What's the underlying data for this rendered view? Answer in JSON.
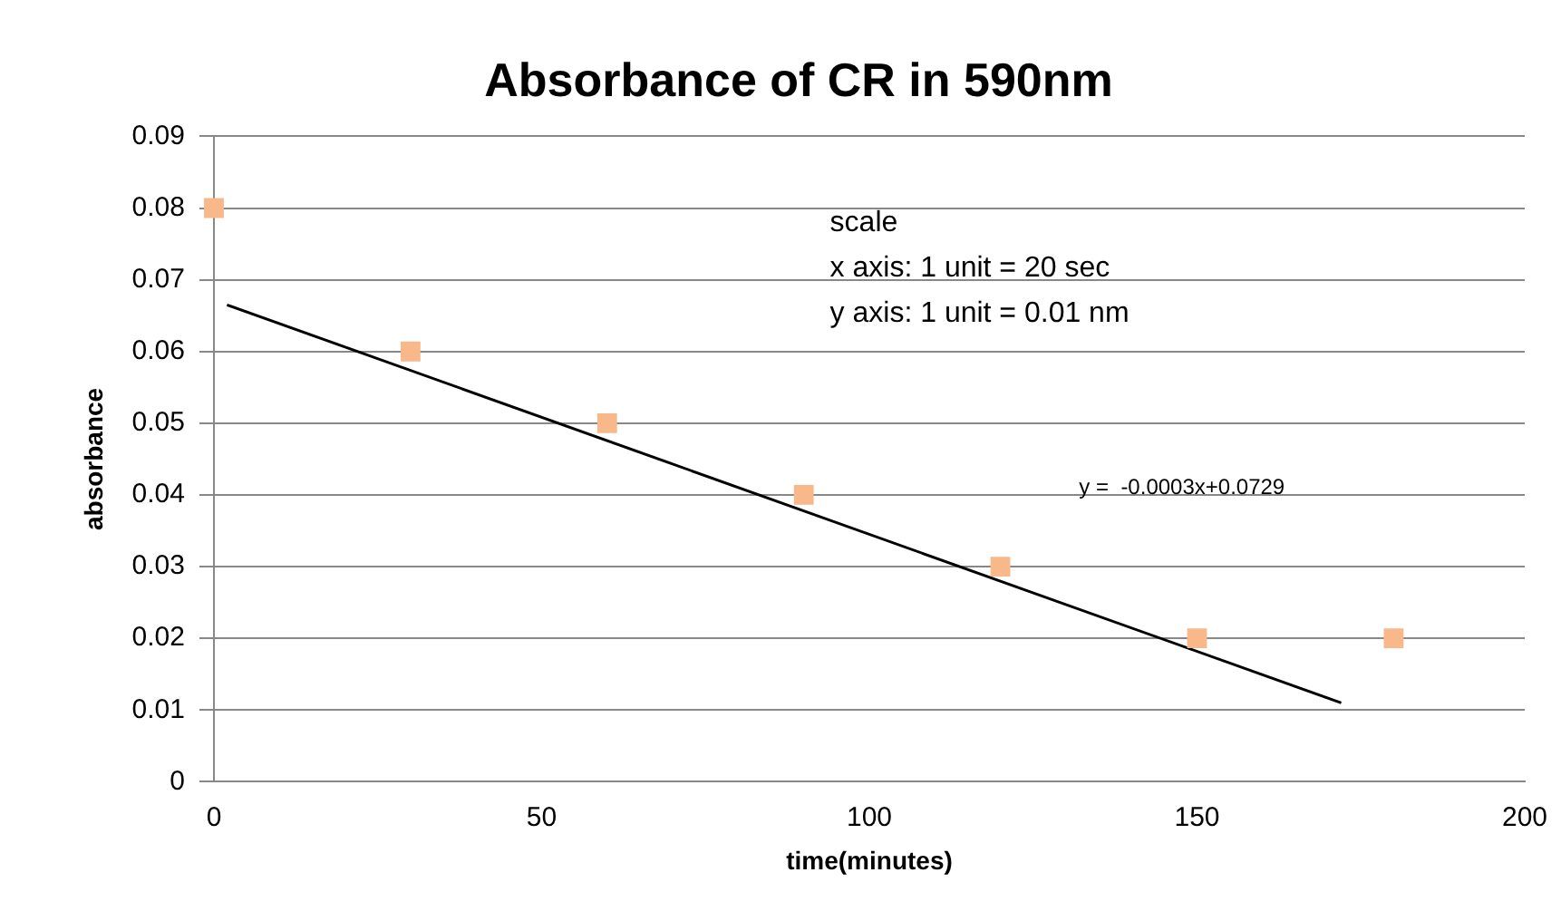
{
  "chart_data": {
    "type": "scatter",
    "title": "Absorbance of CR in 590nm",
    "xlabel": "time(minutes)",
    "ylabel": "absorbance",
    "series": [
      {
        "color": "#f8b889",
        "marker": "square",
        "x": [
          0,
          30,
          60,
          90,
          120,
          150,
          180
        ],
        "values": [
          0.08,
          0.06,
          0.05,
          0.04,
          0.03,
          0.02,
          0.02
        ]
      },
      {
        "type": "line",
        "marker": "none",
        "color": "#000000",
        "x": [
          2,
          172
        ],
        "values": [
          0.0665,
          0.011
        ]
      }
    ],
    "xlim": [
      0,
      200
    ],
    "xticks": [
      0,
      50,
      100,
      150,
      200
    ],
    "ylim": [
      0,
      0.09
    ],
    "yticks": [
      0,
      0.01,
      0.02,
      0.03,
      0.04,
      0.05,
      0.06,
      0.07,
      0.08,
      0.09
    ],
    "grid": "y",
    "legend": false,
    "annotations": [
      "scale",
      "x axis: 1 unit = 20 sec",
      "y axis: 1 unit = 0.01 nm",
      "y =  -0.0003x+0.0729"
    ]
  }
}
